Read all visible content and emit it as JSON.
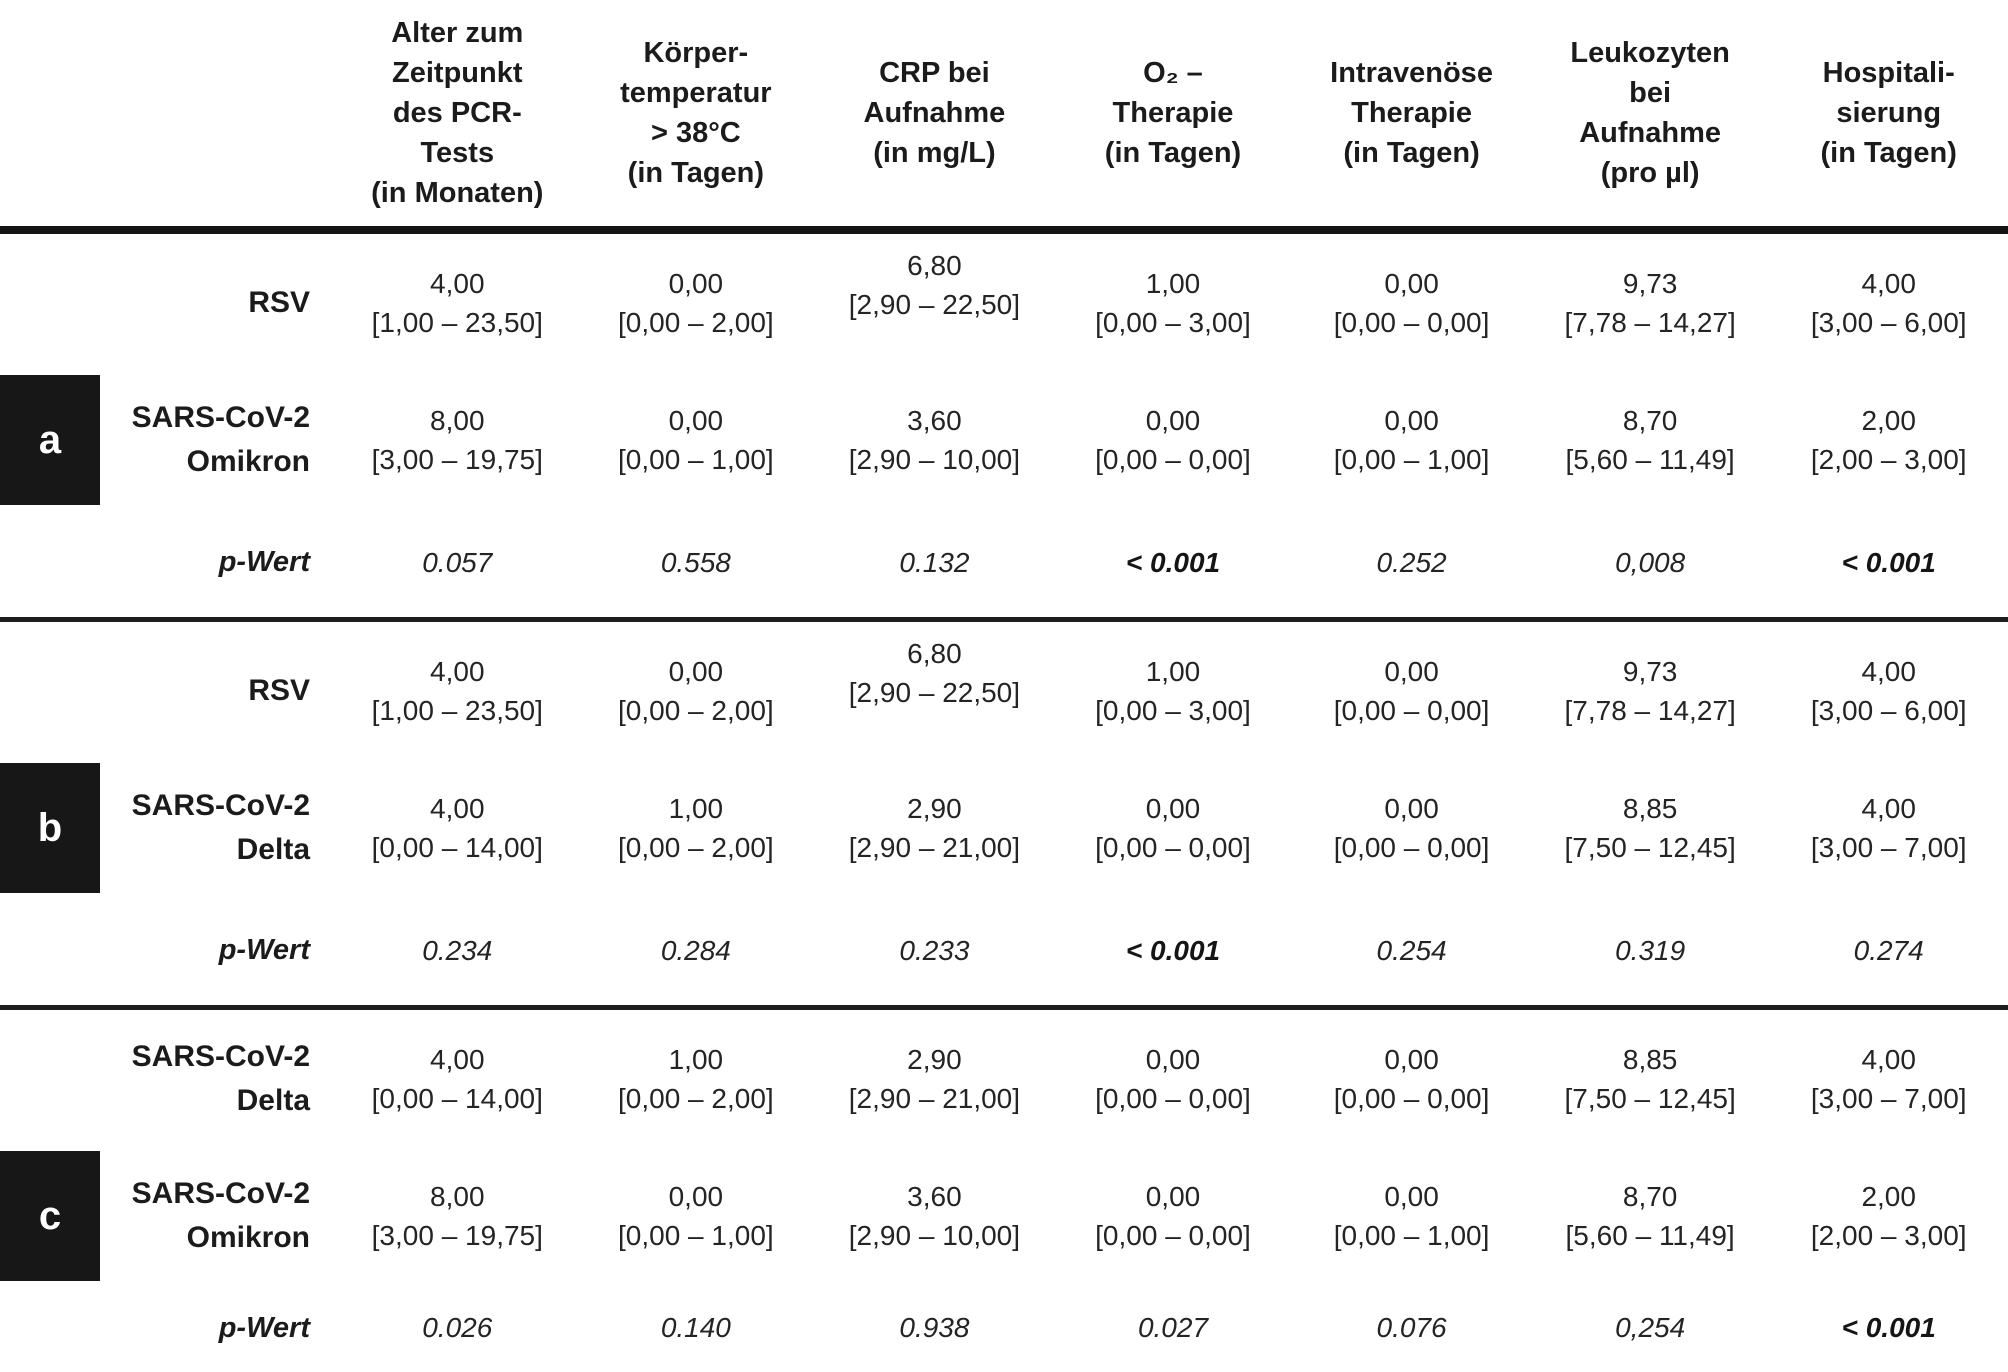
{
  "table": {
    "column_headers": [
      {
        "lines": [
          "Alter zum",
          "Zeitpunkt",
          "des PCR-",
          "Tests",
          "(in Monaten)"
        ]
      },
      {
        "lines": [
          "Körper-",
          "temperatur",
          "> 38°C",
          "(in Tagen)"
        ]
      },
      {
        "lines": [
          "CRP bei",
          "Aufnahme",
          "(in mg/L)"
        ]
      },
      {
        "lines": [
          "O₂ –",
          "Therapie",
          "(in Tagen)"
        ]
      },
      {
        "lines": [
          "Intravenöse",
          "Therapie",
          "(in Tagen)"
        ]
      },
      {
        "lines": [
          "Leukozyten",
          "bei",
          "Aufnahme",
          "(pro µl)"
        ]
      },
      {
        "lines": [
          "Hospitali-",
          "sierung",
          "(in Tagen)"
        ]
      }
    ],
    "sections": [
      {
        "marker": "a",
        "rows": [
          {
            "label_lines": [
              "RSV"
            ],
            "cells": [
              {
                "median": "4,00",
                "iqr": "[1,00 – 23,50]"
              },
              {
                "median": "0,00",
                "iqr": "[0,00 – 2,00]"
              },
              {
                "median": "6,80",
                "iqr": "[2,90 – 22,50]",
                "raised": true
              },
              {
                "median": "1,00",
                "iqr": "[0,00 – 3,00]"
              },
              {
                "median": "0,00",
                "iqr": "[0,00 – 0,00]"
              },
              {
                "median": "9,73",
                "iqr": "[7,78 – 14,27]"
              },
              {
                "median": "4,00",
                "iqr": "[3,00 – 6,00]"
              }
            ]
          },
          {
            "label_lines": [
              "SARS-CoV-2",
              "Omikron"
            ],
            "cells": [
              {
                "median": "8,00",
                "iqr": "[3,00 – 19,75]"
              },
              {
                "median": "0,00",
                "iqr": "[0,00 – 1,00]"
              },
              {
                "median": "3,60",
                "iqr": "[2,90 – 10,00]"
              },
              {
                "median": "0,00",
                "iqr": "[0,00 – 0,00]"
              },
              {
                "median": "0,00",
                "iqr": "[0,00 – 1,00]"
              },
              {
                "median": "8,70",
                "iqr": "[5,60 – 11,49]"
              },
              {
                "median": "2,00",
                "iqr": "[2,00 – 3,00]"
              }
            ]
          }
        ],
        "p_row": {
          "label": "p-Wert",
          "values": [
            {
              "text": "0.057",
              "bold": false
            },
            {
              "text": "0.558",
              "bold": false
            },
            {
              "text": "0.132",
              "bold": false
            },
            {
              "text": "< 0.001",
              "bold": true
            },
            {
              "text": "0.252",
              "bold": false
            },
            {
              "text": "0,008",
              "bold": false
            },
            {
              "text": "< 0.001",
              "bold": true
            }
          ]
        }
      },
      {
        "marker": "b",
        "rows": [
          {
            "label_lines": [
              "RSV"
            ],
            "cells": [
              {
                "median": "4,00",
                "iqr": "[1,00 – 23,50]"
              },
              {
                "median": "0,00",
                "iqr": "[0,00 – 2,00]"
              },
              {
                "median": "6,80",
                "iqr": "[2,90 – 22,50]",
                "raised": true
              },
              {
                "median": "1,00",
                "iqr": "[0,00 – 3,00]"
              },
              {
                "median": "0,00",
                "iqr": "[0,00 – 0,00]"
              },
              {
                "median": "9,73",
                "iqr": "[7,78 – 14,27]"
              },
              {
                "median": "4,00",
                "iqr": "[3,00 – 6,00]"
              }
            ]
          },
          {
            "label_lines": [
              "SARS-CoV-2",
              "Delta"
            ],
            "cells": [
              {
                "median": "4,00",
                "iqr": "[0,00 – 14,00]"
              },
              {
                "median": "1,00",
                "iqr": "[0,00 – 2,00]"
              },
              {
                "median": "2,90",
                "iqr": "[2,90 – 21,00]"
              },
              {
                "median": "0,00",
                "iqr": "[0,00 – 0,00]"
              },
              {
                "median": "0,00",
                "iqr": "[0,00 – 0,00]"
              },
              {
                "median": "8,85",
                "iqr": "[7,50 – 12,45]"
              },
              {
                "median": "4,00",
                "iqr": "[3,00 – 7,00]"
              }
            ]
          }
        ],
        "p_row": {
          "label": "p-Wert",
          "values": [
            {
              "text": "0.234",
              "bold": false
            },
            {
              "text": "0.284",
              "bold": false
            },
            {
              "text": "0.233",
              "bold": false
            },
            {
              "text": "< 0.001",
              "bold": true
            },
            {
              "text": "0.254",
              "bold": false
            },
            {
              "text": "0.319",
              "bold": false
            },
            {
              "text": "0.274",
              "bold": false
            }
          ]
        }
      },
      {
        "marker": "c",
        "rows": [
          {
            "label_lines": [
              "SARS-CoV-2",
              "Delta"
            ],
            "cells": [
              {
                "median": "4,00",
                "iqr": "[0,00 – 14,00]"
              },
              {
                "median": "1,00",
                "iqr": "[0,00 – 2,00]"
              },
              {
                "median": "2,90",
                "iqr": "[2,90 – 21,00]"
              },
              {
                "median": "0,00",
                "iqr": "[0,00 – 0,00]"
              },
              {
                "median": "0,00",
                "iqr": "[0,00 – 0,00]"
              },
              {
                "median": "8,85",
                "iqr": "[7,50 – 12,45]"
              },
              {
                "median": "4,00",
                "iqr": "[3,00 – 7,00]"
              }
            ]
          },
          {
            "label_lines": [
              "SARS-CoV-2",
              "Omikron"
            ],
            "cells": [
              {
                "median": "8,00",
                "iqr": "[3,00 – 19,75]"
              },
              {
                "median": "0,00",
                "iqr": "[0,00 – 1,00]"
              },
              {
                "median": "3,60",
                "iqr": "[2,90 – 10,00]"
              },
              {
                "median": "0,00",
                "iqr": "[0,00 – 0,00]"
              },
              {
                "median": "0,00",
                "iqr": "[0,00 – 1,00]"
              },
              {
                "median": "8,70",
                "iqr": "[5,60 – 11,49]"
              },
              {
                "median": "2,00",
                "iqr": "[2,00 – 3,00]"
              }
            ]
          }
        ],
        "p_row": {
          "label": "p-Wert",
          "values": [
            {
              "text": "0.026",
              "bold": false
            },
            {
              "text": "0.140",
              "bold": false
            },
            {
              "text": "0.938",
              "bold": false
            },
            {
              "text": "0.027",
              "bold": false
            },
            {
              "text": "0.076",
              "bold": false
            },
            {
              "text": "0,254",
              "bold": false
            },
            {
              "text": "< 0.001",
              "bold": true
            }
          ]
        }
      }
    ]
  }
}
